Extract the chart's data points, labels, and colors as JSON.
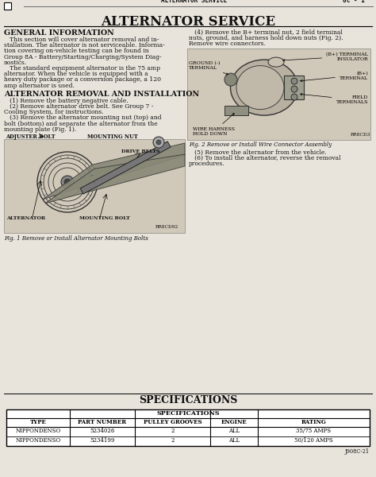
{
  "page_header_left": "ALTERNATOR SERVICE",
  "page_header_right": "8C - 1",
  "main_title": "ALTERNATOR SERVICE",
  "bg_color": "#e8e4dc",
  "text_color": "#111111",
  "section1_title": "GENERAL INFORMATION",
  "section1_lines": [
    "   This section will cover alternator removal and in-",
    "stallation. The alternator is not serviceable. Informa-",
    "tion covering on-vehicle testing can be found in",
    "Group 8A - Battery/Starting/Charging/System Diag-",
    "nostics.",
    "   The standard equipment alternator is the 75 amp",
    "alternator. When the vehicle is equipped with a",
    "heavy duty package or a conversion package, a 120",
    "amp alternator is used."
  ],
  "section2_title": "ALTERNATOR REMOVAL AND INSTALLATION",
  "section2_lines": [
    "   (1) Remove the battery negative cable.",
    "   (2) Remove alternator drive belt. See Group 7 -",
    "Cooling System, for instructions.",
    "   (3) Remove the alternator mounting nut (top) and",
    "bolt (bottom) and separate the alternator from the",
    "mounting plate (Fig. 1)."
  ],
  "section3_lines": [
    "   (4) Remove the B+ terminal nut, 2 field terminal",
    "nuts, ground, and harness hold down nuts (Fig. 2).",
    "Remove wire connectors."
  ],
  "section4_lines": [
    "   (5) Remove the alternator from the vehicle.",
    "   (6) To install the alternator, reverse the removal",
    "procedures."
  ],
  "fig1_caption": "Fig. 1 Remove or Install Alternator Mounting Bolts",
  "fig2_caption": "Fig. 2 Remove or Install Wire Connector Assembly",
  "spec_section_title": "SPECIFICATIONS",
  "spec_table_header": "SPECIFICATIONS",
  "spec_headers": [
    "TYPE",
    "PART NUMBER",
    "PULLEY GROOVES",
    "ENGINE",
    "RATING"
  ],
  "spec_rows": [
    [
      "NIPPONDENSO",
      "5234026",
      "2",
      "ALL",
      "35/75 AMPS"
    ],
    [
      "NIPPONDENSO",
      "5234199",
      "2",
      "ALL",
      "50/120 AMPS"
    ]
  ],
  "footer": "J908C-21",
  "fig1_labels": {
    "adjuster_bolt": "ADJUSTER BOLT",
    "mounting_nut": "MOUNTING NUT",
    "drive_belts": "DRIVE BELTS",
    "alternator": "ALTERNATOR",
    "mounting_bolt": "MOUNTING BOLT",
    "code": "RR8CD92"
  },
  "fig2_labels": {
    "ground": "GROUND (-)\nTERMINAL",
    "b_plus_insulator": "(B+) TERMINAL\nINSULATOR",
    "b_plus_terminal": "(B+)\nTERMINAL",
    "field": "FIELD\nTERMINALS",
    "wire_harness": "WIRE HARNESS\nHOLD DOWN",
    "code": "RR8CD3"
  }
}
